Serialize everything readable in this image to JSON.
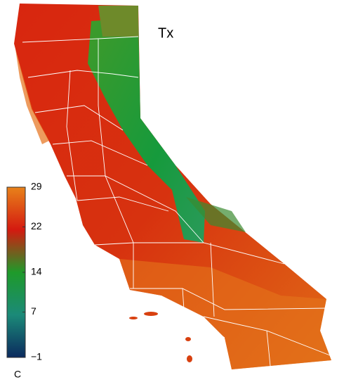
{
  "map": {
    "title": "Tx",
    "colorbar": {
      "unit": "C",
      "lim": [
        -1,
        29
      ],
      "ticks": [
        29,
        22,
        14,
        7,
        {
          "value": -1,
          "label": "−1"
        }
      ],
      "colors": [
        "#0b2a5e",
        "#1b8a78",
        "#1e9a2a",
        "#d41a10",
        "#e8821a"
      ]
    }
  }
}
